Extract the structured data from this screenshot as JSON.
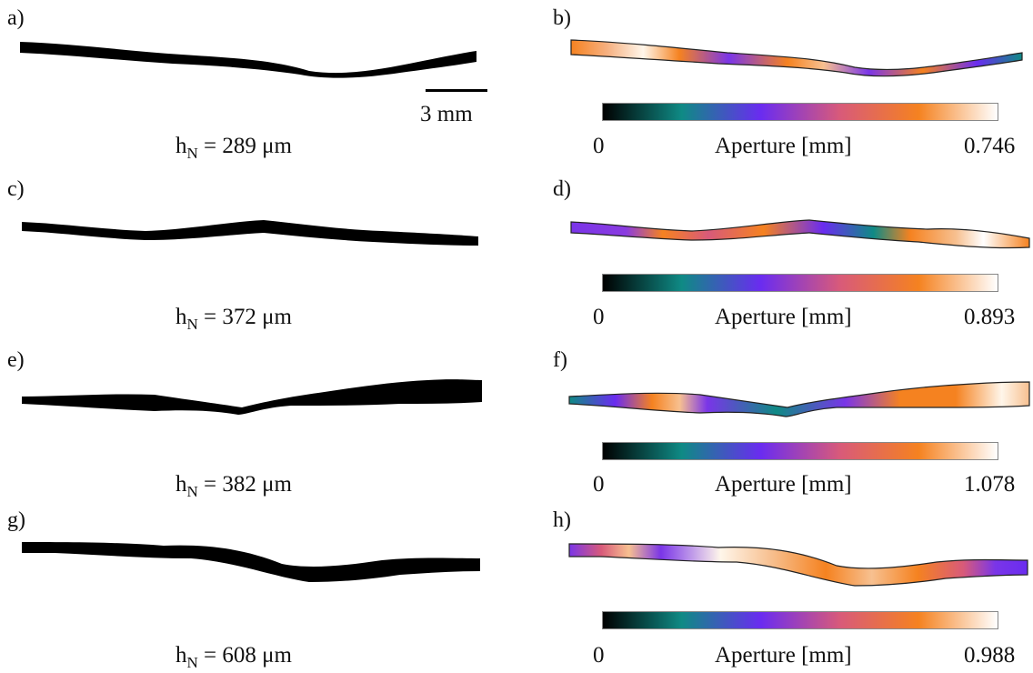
{
  "figure": {
    "rows": [
      {
        "label_left": "a)",
        "label_right": "b)",
        "caption_prefix": "h",
        "caption_sub": "N",
        "caption_value": "= 289 μm",
        "cb_min": "0",
        "cb_label": "Aperture [mm]",
        "cb_max": "0.746"
      },
      {
        "label_left": "c)",
        "label_right": "d)",
        "caption_prefix": "h",
        "caption_sub": "N",
        "caption_value": "= 372 μm",
        "cb_min": "0",
        "cb_label": "Aperture [mm]",
        "cb_max": "0.893"
      },
      {
        "label_left": "e)",
        "label_right": "f)",
        "caption_prefix": "h",
        "caption_sub": "N",
        "caption_value": "= 382 μm",
        "cb_min": "0",
        "cb_label": "Aperture [mm]",
        "cb_max": "1.078"
      },
      {
        "label_left": "g)",
        "label_right": "h)",
        "caption_prefix": "h",
        "caption_sub": "N",
        "caption_value": "= 608 μm",
        "cb_min": "0",
        "cb_label": "Aperture [mm]",
        "cb_max": "0.988"
      }
    ],
    "scale_bar_label": "3 mm",
    "colormap": [
      "#000000",
      "#0f8a85",
      "#6a2cf0",
      "#d85a7a",
      "#f58220",
      "#ffffff"
    ]
  }
}
